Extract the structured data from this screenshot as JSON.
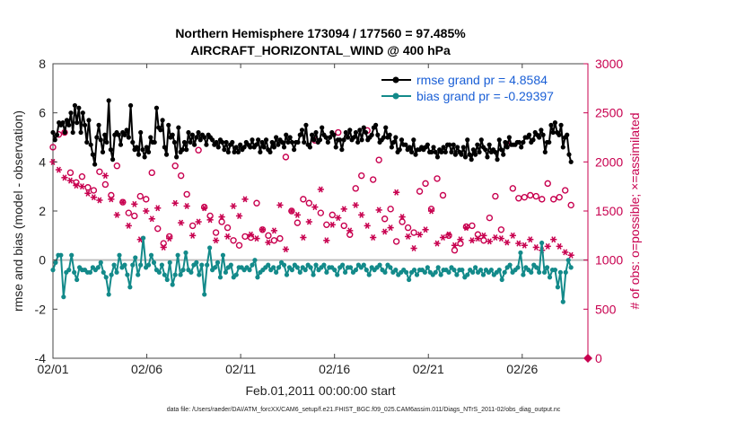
{
  "chart_data": {
    "type": "line",
    "title_line1": "Northern Hemisphere 173094 / 177560 = 97.485%",
    "title_line2": "AIRCRAFT_HORIZONTAL_WIND @ 400 hPa",
    "xlabel": "Feb.01,2011 00:00:00 start",
    "ylabel_left": "rmse and bias (model - observation)",
    "ylabel_right": "# of obs: o=possible; ×=assimilated",
    "footnote": "data file: /Users/raeder/DAI/ATM_forcXX/CAM6_setup/f.e21.FHIST_BGC.f09_025.CAM6assim.011/Diags_NTrS_2011-02/obs_diag_output.nc",
    "xlim": [
      1,
      29.5
    ],
    "ylim_left": [
      -4,
      8
    ],
    "ylim_right": [
      0,
      3000
    ],
    "x_ticks": [
      1,
      6,
      11,
      16,
      21,
      26
    ],
    "x_tick_labels": [
      "02/01",
      "02/06",
      "02/11",
      "02/16",
      "02/21",
      "02/26"
    ],
    "y_ticks_left": [
      -4,
      -2,
      0,
      2,
      4,
      6,
      8
    ],
    "y_ticks_right": [
      0,
      500,
      1000,
      1500,
      2000,
      2500,
      3000
    ],
    "grid": false,
    "legend_position": "top-right",
    "colors": {
      "rmse": "#000000",
      "bias": "#138a8a",
      "obs": "#c8004f",
      "zero_line": "#bdbdbd",
      "legend_text": "#1a5fd6"
    },
    "series": [
      {
        "name": "rmse grand pr = 4.8584",
        "axis": "left",
        "values": [
          5.2,
          4.9,
          5.1,
          5.6,
          5.5,
          5.6,
          5.2,
          5.7,
          5.5,
          6.0,
          5.2,
          6.3,
          5.6,
          6.2,
          5.2,
          6.0,
          5.5,
          4.8,
          5.7,
          4.7,
          4.3,
          3.9,
          5.0,
          5.5,
          4.9,
          4.4,
          5.1,
          4.8,
          6.5,
          4.5,
          4.1,
          5.1,
          5.2,
          5.1,
          4.7,
          5.2,
          5.1,
          5.3,
          5.0,
          6.3,
          4.8,
          4.5,
          4.6,
          4.3,
          5.2,
          4.5,
          4.2,
          4.6,
          4.4,
          5.0,
          4.8,
          4.8,
          6.2,
          5.4,
          5.3,
          5.7,
          4.6,
          4.3,
          5.5,
          5.0,
          5.1,
          4.8,
          4.2,
          5.4,
          4.4,
          4.5,
          4.8,
          4.5,
          5.2,
          4.8,
          5.1,
          4.7,
          5.0,
          5.2,
          4.9,
          5.1,
          5.0,
          4.7,
          5.1,
          5.0,
          4.9,
          4.7,
          4.8,
          4.6,
          4.9,
          4.8,
          4.5,
          4.8,
          4.4,
          4.7,
          4.8,
          4.4,
          4.6,
          4.4,
          4.7,
          4.5,
          4.6,
          4.8,
          4.7,
          4.6,
          4.9,
          4.6,
          4.7,
          4.9,
          4.4,
          4.8,
          4.6,
          4.9,
          4.5,
          4.4,
          4.8,
          4.6,
          5.0,
          4.7,
          4.9,
          4.8,
          4.6,
          5.1,
          4.8,
          5.0,
          4.8,
          4.5,
          4.8,
          4.8,
          5.1,
          5.3,
          4.8,
          5.5,
          4.7,
          4.6,
          5.1,
          4.9,
          5.2,
          4.8,
          4.9,
          5.4,
          5.1,
          5.0,
          4.8,
          5.0,
          5.2,
          5.1,
          4.6,
          4.9,
          4.9,
          4.5,
          4.9,
          5.2,
          5.0,
          5.3,
          4.9,
          5.0,
          5.2,
          4.8,
          5.3,
          4.9,
          5.4,
          5.2,
          4.9,
          5.0,
          5.1,
          5.4,
          5.5,
          5.1,
          4.8,
          4.9,
          5.0,
          5.4,
          5.0,
          5.1,
          4.6,
          4.8,
          5.0,
          4.4,
          4.5,
          4.9,
          4.7,
          4.7,
          4.5,
          4.6,
          4.4,
          4.9,
          4.3,
          4.5,
          4.5,
          4.6,
          4.5,
          4.6,
          4.7,
          4.4,
          4.4,
          4.6,
          4.4,
          4.2,
          4.5,
          4.4,
          4.6,
          4.4,
          4.7,
          4.7,
          4.4,
          4.7,
          4.3,
          4.6,
          4.4,
          4.3,
          4.6,
          4.2,
          4.9,
          4.3,
          4.1,
          4.5,
          4.3,
          4.7,
          4.4,
          4.9,
          4.6,
          4.5,
          4.2,
          4.7,
          4.4,
          4.5,
          4.4,
          4.1,
          4.9,
          4.5,
          4.3,
          4.8,
          4.6,
          5.0,
          4.7,
          4.7,
          4.7,
          4.8,
          4.8,
          4.6,
          4.8,
          5.0,
          5.0,
          5.1,
          4.8,
          4.9,
          5.2,
          5.1,
          5.0,
          5.3,
          5.1,
          4.4,
          4.8,
          4.8,
          5.5,
          5.2,
          5.6,
          5.2,
          5.1,
          5.5,
          4.6,
          5.0,
          5.1,
          4.3,
          4.0
        ],
        "color": "#000000",
        "marker": "filled-circle"
      },
      {
        "name": "bias grand pr = -0.29397",
        "axis": "left",
        "values": [
          -0.4,
          -0.1,
          0.2,
          0.2,
          -1.5,
          -0.5,
          -0.4,
          0.2,
          -0.5,
          -0.8,
          -0.3,
          -0.4,
          -0.4,
          -0.5,
          -0.5,
          -0.3,
          -0.4,
          -0.3,
          -0.1,
          -0.5,
          -0.7,
          -1.4,
          -0.6,
          -0.2,
          -0.5,
          0.2,
          -0.3,
          -0.2,
          -0.6,
          -1.1,
          -0.2,
          0.1,
          -0.6,
          -0.2,
          0.9,
          -0.3,
          -0.2,
          0.2,
          -0.1,
          -0.4,
          -0.5,
          -0.2,
          -0.6,
          -0.8,
          -0.1,
          -1.0,
          -0.6,
          0.2,
          -0.6,
          -0.4,
          0.3,
          -0.4,
          -0.5,
          -0.2,
          -0.1,
          -0.6,
          -0.2,
          -1.4,
          -0.2,
          0.5,
          -0.4,
          -0.3,
          -0.1,
          -0.7,
          0.2,
          -0.5,
          -0.3,
          -0.2,
          -0.7,
          -0.6,
          -0.3,
          -0.3,
          -0.4,
          -0.3,
          -0.4,
          -0.2,
          0.0,
          -0.7,
          -0.5,
          -0.4,
          -0.3,
          -0.2,
          -0.4,
          -0.3,
          -0.5,
          -0.3,
          -0.1,
          -0.2,
          -0.6,
          -0.3,
          -0.4,
          -0.2,
          -0.3,
          -0.5,
          -0.3,
          -0.4,
          -0.2,
          -0.3,
          -0.6,
          -0.2,
          -0.4,
          -0.3,
          -0.2,
          -0.5,
          -0.3,
          -0.3,
          -0.4,
          -0.6,
          -0.3,
          -0.2,
          -0.5,
          -0.3,
          -0.3,
          -0.5,
          -0.4,
          -0.2,
          -0.3,
          -0.2,
          -0.4,
          -0.6,
          -0.3,
          -0.4,
          -0.3,
          -0.2,
          -0.4,
          -0.5,
          -0.2,
          -0.3,
          -0.5,
          -0.4,
          -0.6,
          -0.5,
          -0.4,
          -0.5,
          -0.8,
          -0.5,
          -0.4,
          -0.6,
          -0.4,
          -0.4,
          -0.5,
          -0.3,
          -0.5,
          -0.6,
          -0.5,
          -0.3,
          -0.6,
          -0.4,
          -0.4,
          -0.5,
          -0.3,
          -0.4,
          -0.6,
          -0.4,
          -0.4,
          -0.7,
          -0.6,
          -0.4,
          -0.5,
          -0.3,
          -0.5,
          -0.4,
          -0.6,
          -0.4,
          -0.5,
          -0.4,
          -0.6,
          -0.5,
          -0.4,
          -0.8,
          -0.5,
          -0.3,
          -0.2,
          -0.5,
          -0.4,
          -0.3,
          0.3,
          -0.6,
          -0.3,
          -0.4,
          -0.5,
          -0.2,
          -0.3,
          -0.5,
          0.7,
          -0.5,
          -0.3,
          -0.7,
          -0.4,
          -0.4,
          -1.1,
          -0.5,
          -1.7,
          -0.5,
          0.0,
          -0.3
        ],
        "color": "#138a8a",
        "marker": "filled-circle"
      },
      {
        "name": "",
        "axis": "right",
        "values": [
          2150,
          2280,
          2300,
          1890,
          1790,
          1850,
          1740,
          1710,
          1900,
          1770,
          1660,
          1960,
          1590,
          1480,
          1450,
          1650,
          1620,
          1890,
          1320,
          1170,
          1240,
          1960,
          1860,
          1670,
          1350,
          2120,
          1540,
          1450,
          1280,
          1390,
          1330,
          1200,
          1150,
          1240,
          1230,
          1580,
          1310,
          1250,
          1200,
          1220,
          2050,
          1500,
          1380,
          1620,
          1580,
          2220,
          1480,
          1360,
          1460,
          2300,
          1350,
          1260,
          1730,
          1860,
          2320,
          1820,
          2020,
          1420,
          1520,
          1190,
          1390,
          1330,
          1280,
          1700,
          1780,
          1520,
          1830,
          1660,
          1250,
          1100,
          1170,
          1340,
          1350,
          1260,
          1200,
          1430,
          1650,
          1310,
          2180,
          1730,
          1630,
          1640,
          1660,
          1650,
          1620,
          1780,
          1620,
          1640,
          1710,
          1560
        ],
        "color": "#c8004f",
        "marker": "circle-open"
      },
      {
        "name": "",
        "axis": "right",
        "values": [
          2000,
          1920,
          1840,
          1810,
          1760,
          1750,
          1680,
          1640,
          1610,
          1860,
          1620,
          1460,
          1590,
          1350,
          1570,
          1210,
          1500,
          1420,
          1530,
          1130,
          1220,
          1580,
          1380,
          1550,
          1250,
          1390,
          1530,
          1410,
          1200,
          1440,
          1240,
          1550,
          1450,
          1620,
          1260,
          1220,
          1310,
          1180,
          1300,
          1560,
          1110,
          1500,
          1460,
          1230,
          1390,
          1540,
          1720,
          1200,
          1360,
          1430,
          1520,
          1300,
          1560,
          1460,
          1350,
          1230,
          1510,
          1290,
          1330,
          1690,
          1440,
          1240,
          1120,
          1260,
          1310,
          1500,
          1170,
          1230,
          1260,
          1150,
          1210,
          1330,
          1200,
          1220,
          1250,
          1190,
          1230,
          1220,
          1180,
          1250,
          1170,
          1150,
          1210,
          1130,
          1100,
          1140,
          1210,
          1140,
          1080,
          1050
        ],
        "color": "#c8004f",
        "marker": "asterisk"
      }
    ],
    "legend": [
      {
        "label": "rmse grand pr = 4.8584",
        "color": "#000000"
      },
      {
        "label": "bias grand pr = -0.29397",
        "color": "#138a8a"
      }
    ]
  }
}
